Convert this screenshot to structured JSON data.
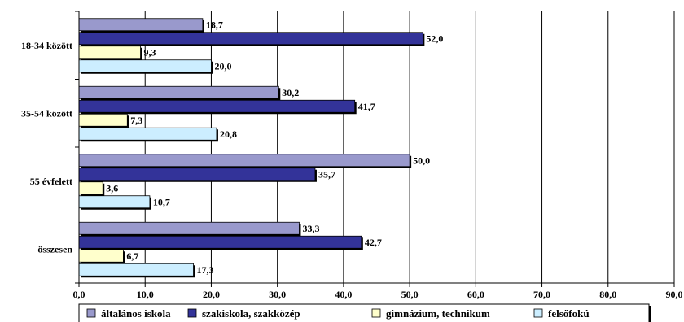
{
  "chart_data": {
    "type": "bar",
    "orientation": "horizontal",
    "categories": [
      "18-34 között",
      "35-54 között",
      "55 évfelett",
      "összesen"
    ],
    "series": [
      {
        "name": "általános iskola",
        "color": "#9999cc",
        "values": [
          18.7,
          30.2,
          50.0,
          33.3
        ],
        "labels": [
          "18,7",
          "30,2",
          "50,0",
          "33,3"
        ]
      },
      {
        "name": "szakiskola, szakközép",
        "color": "#333399",
        "values": [
          52.0,
          41.7,
          35.7,
          42.7
        ],
        "labels": [
          "52,0",
          "41,7",
          "35,7",
          "42,7"
        ]
      },
      {
        "name": "gimnázium, technikum",
        "color": "#ffffcc",
        "values": [
          9.3,
          7.3,
          3.6,
          6.7
        ],
        "labels": [
          "9,3",
          "7,3",
          "3,6",
          "6,7"
        ]
      },
      {
        "name": "felsőfokú",
        "color": "#cceeff",
        "values": [
          20.0,
          20.8,
          10.7,
          17.3
        ],
        "labels": [
          "20,0",
          "20,8",
          "10,7",
          "17,3"
        ]
      }
    ],
    "xlim": [
      0,
      90
    ],
    "xticks": [
      0,
      10,
      20,
      30,
      40,
      50,
      60,
      70,
      80,
      90
    ],
    "xtick_labels": [
      "0,0",
      "10,0",
      "20,0",
      "30,0",
      "40,0",
      "50,0",
      "60,0",
      "70,0",
      "80,0",
      "90,0"
    ],
    "grid": "vertical",
    "legend_position": "bottom"
  }
}
